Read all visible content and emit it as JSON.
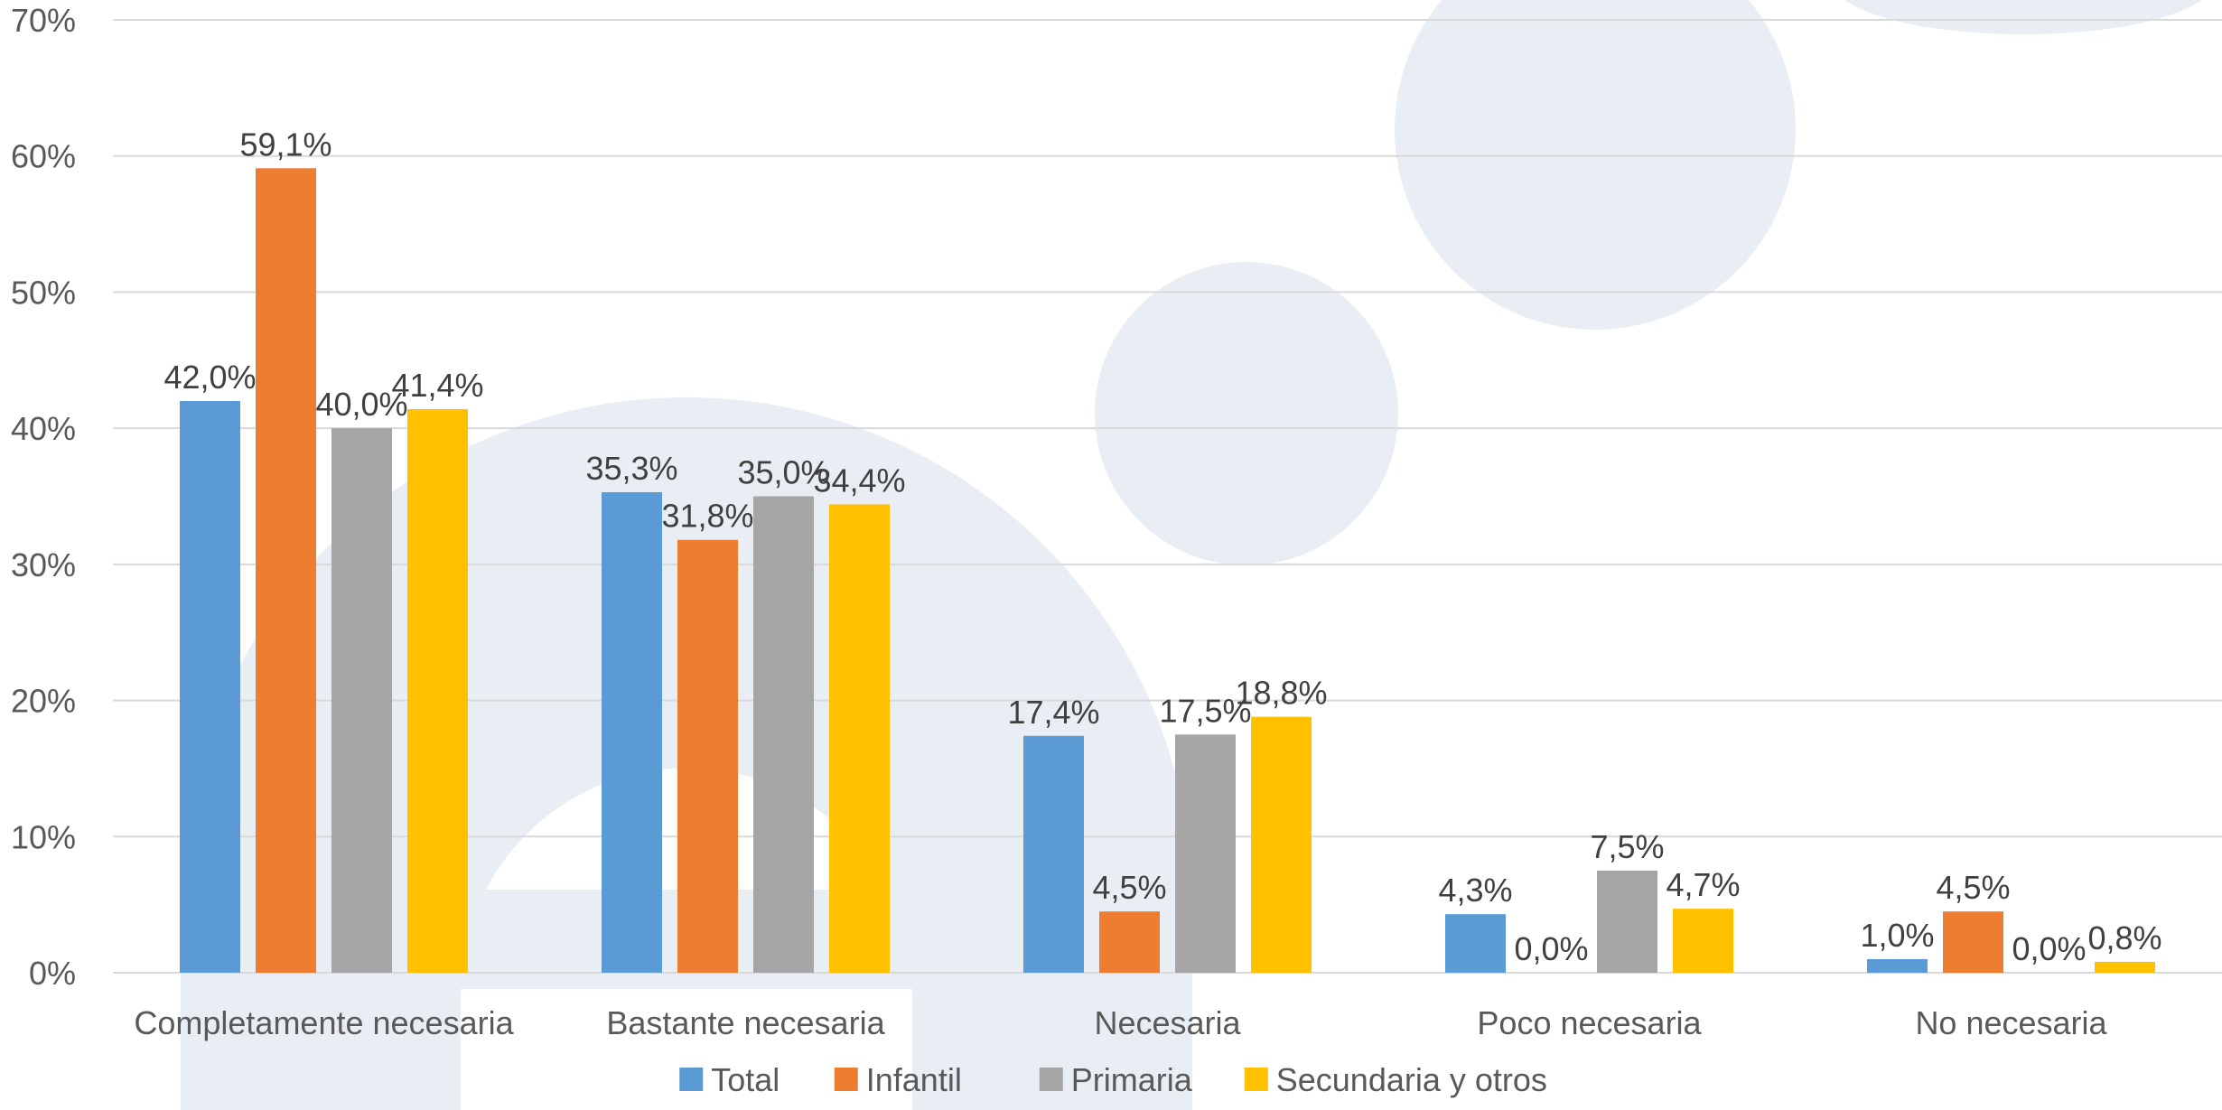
{
  "chart_data": {
    "type": "bar",
    "title": "",
    "xlabel": "",
    "ylabel": "",
    "ylim": [
      0,
      70
    ],
    "yticks": [
      0,
      10,
      20,
      30,
      40,
      50,
      60,
      70
    ],
    "ytick_labels": [
      "0%",
      "10%",
      "20%",
      "30%",
      "40%",
      "50%",
      "60%",
      "70%"
    ],
    "grid": true,
    "legend_position": "bottom",
    "categories": [
      "Completamente necesaria",
      "Bastante necesaria",
      "Necesaria",
      "Poco necesaria",
      "No necesaria"
    ],
    "series": [
      {
        "name": "Total",
        "color": "#5B9BD5",
        "values": [
          42.0,
          35.3,
          17.4,
          4.3,
          1.0
        ],
        "labels": [
          "42,0%",
          "35,3%",
          "17,4%",
          "4,3%",
          "1,0%"
        ]
      },
      {
        "name": "Infantil",
        "color": "#ED7D31",
        "values": [
          59.1,
          31.8,
          4.5,
          0.0,
          4.5
        ],
        "labels": [
          "59,1%",
          "31,8%",
          "4,5%",
          "0,0%",
          "4,5%"
        ]
      },
      {
        "name": "Primaria",
        "color": "#A5A5A5",
        "values": [
          40.0,
          35.0,
          17.5,
          7.5,
          0.0
        ],
        "labels": [
          "40,0%",
          "35,0%",
          "17,5%",
          "7,5%",
          "0,0%"
        ]
      },
      {
        "name": "Secundaria y otros",
        "color": "#FFC000",
        "values": [
          41.4,
          34.4,
          18.8,
          4.7,
          0.8
        ],
        "labels": [
          "41,4%",
          "34,4%",
          "18,8%",
          "4,7%",
          "0,8%"
        ]
      }
    ]
  }
}
